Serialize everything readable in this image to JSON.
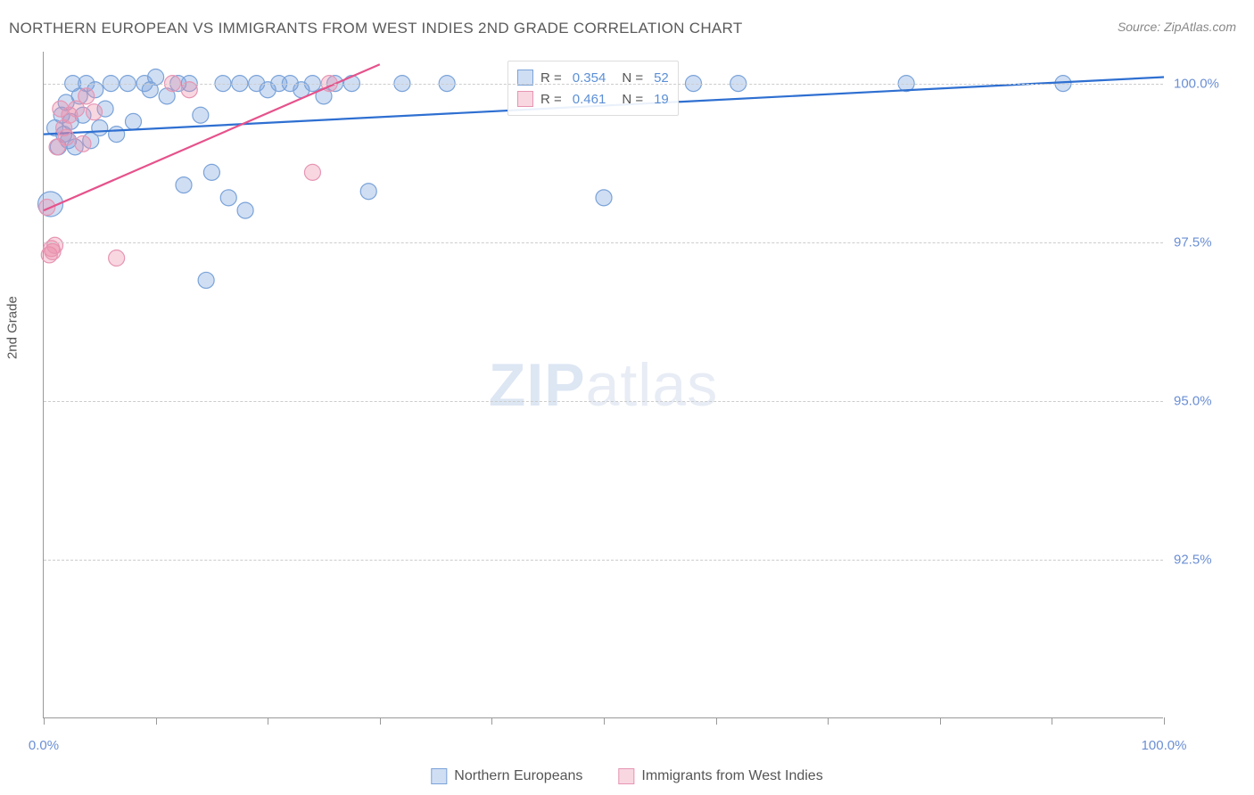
{
  "title": "NORTHERN EUROPEAN VS IMMIGRANTS FROM WEST INDIES 2ND GRADE CORRELATION CHART",
  "source_label": "Source: ZipAtlas.com",
  "watermark_a": "ZIP",
  "watermark_b": "atlas",
  "y_axis_label": "2nd Grade",
  "chart": {
    "type": "scatter",
    "xlim": [
      0,
      100
    ],
    "ylim": [
      90.0,
      100.5
    ],
    "x_ticks": [
      0,
      10,
      20,
      30,
      40,
      50,
      60,
      70,
      80,
      90,
      100
    ],
    "x_tick_labels_shown": {
      "0": "0.0%",
      "100": "100.0%"
    },
    "y_gridlines": [
      92.5,
      95.0,
      97.5,
      100.0
    ],
    "y_tick_labels": {
      "92.5": "92.5%",
      "95.0": "95.0%",
      "97.5": "97.5%",
      "100.0": "100.0%"
    },
    "background_color": "#ffffff",
    "grid_color": "#cccccc",
    "axis_color": "#999999",
    "tick_label_color": "#6b8fd4",
    "series": [
      {
        "name": "Northern Europeans",
        "color_fill": "rgba(120,160,220,0.35)",
        "color_stroke": "#7aa3d9",
        "marker_radius": 9,
        "r_value": "0.354",
        "n_value": "52",
        "trend": {
          "x1": 0,
          "y1": 99.2,
          "x2": 100,
          "y2": 100.1,
          "color": "#2e6fd1",
          "width": 2.2
        },
        "points": [
          {
            "x": 0.6,
            "y": 98.1,
            "r": 14
          },
          {
            "x": 1.0,
            "y": 99.3
          },
          {
            "x": 1.3,
            "y": 99.0
          },
          {
            "x": 1.6,
            "y": 99.5
          },
          {
            "x": 1.8,
            "y": 99.2
          },
          {
            "x": 2.0,
            "y": 99.7
          },
          {
            "x": 2.2,
            "y": 99.1
          },
          {
            "x": 2.4,
            "y": 99.4
          },
          {
            "x": 2.6,
            "y": 100.0
          },
          {
            "x": 2.8,
            "y": 99.0
          },
          {
            "x": 3.2,
            "y": 99.8
          },
          {
            "x": 3.5,
            "y": 99.5
          },
          {
            "x": 3.8,
            "y": 100.0
          },
          {
            "x": 4.2,
            "y": 99.1
          },
          {
            "x": 4.6,
            "y": 99.9
          },
          {
            "x": 5.0,
            "y": 99.3
          },
          {
            "x": 5.5,
            "y": 99.6
          },
          {
            "x": 6.0,
            "y": 100.0
          },
          {
            "x": 6.5,
            "y": 99.2
          },
          {
            "x": 7.5,
            "y": 100.0
          },
          {
            "x": 8.0,
            "y": 99.4
          },
          {
            "x": 9.0,
            "y": 100.0
          },
          {
            "x": 9.5,
            "y": 99.9
          },
          {
            "x": 10.0,
            "y": 100.1
          },
          {
            "x": 11.0,
            "y": 99.8
          },
          {
            "x": 12.0,
            "y": 100.0
          },
          {
            "x": 12.5,
            "y": 98.4
          },
          {
            "x": 13.0,
            "y": 100.0
          },
          {
            "x": 14.0,
            "y": 99.5
          },
          {
            "x": 14.5,
            "y": 96.9
          },
          {
            "x": 15.0,
            "y": 98.6
          },
          {
            "x": 16.0,
            "y": 100.0
          },
          {
            "x": 16.5,
            "y": 98.2
          },
          {
            "x": 17.5,
            "y": 100.0
          },
          {
            "x": 18.0,
            "y": 98.0
          },
          {
            "x": 19.0,
            "y": 100.0
          },
          {
            "x": 20.0,
            "y": 99.9
          },
          {
            "x": 21.0,
            "y": 100.0
          },
          {
            "x": 22.0,
            "y": 100.0
          },
          {
            "x": 23.0,
            "y": 99.9
          },
          {
            "x": 24.0,
            "y": 100.0
          },
          {
            "x": 25.0,
            "y": 99.8
          },
          {
            "x": 26.0,
            "y": 100.0
          },
          {
            "x": 27.5,
            "y": 100.0
          },
          {
            "x": 29.0,
            "y": 98.3
          },
          {
            "x": 32.0,
            "y": 100.0
          },
          {
            "x": 36.0,
            "y": 100.0
          },
          {
            "x": 50.0,
            "y": 98.2
          },
          {
            "x": 58.0,
            "y": 100.0
          },
          {
            "x": 62.0,
            "y": 100.0
          },
          {
            "x": 77.0,
            "y": 100.0
          },
          {
            "x": 91.0,
            "y": 100.0
          }
        ]
      },
      {
        "name": "Immigrants from West Indies",
        "color_fill": "rgba(235,140,170,0.35)",
        "color_stroke": "#e695b3",
        "marker_radius": 9,
        "r_value": "0.461",
        "n_value": "19",
        "trend": {
          "x1": 0,
          "y1": 98.0,
          "x2": 30,
          "y2": 100.3,
          "color": "#e6528b",
          "width": 2.2
        },
        "points": [
          {
            "x": 0.3,
            "y": 98.05
          },
          {
            "x": 0.5,
            "y": 97.3
          },
          {
            "x": 0.7,
            "y": 97.4
          },
          {
            "x": 0.8,
            "y": 97.35
          },
          {
            "x": 1.0,
            "y": 97.45
          },
          {
            "x": 1.2,
            "y": 99.0
          },
          {
            "x": 1.5,
            "y": 99.6
          },
          {
            "x": 1.8,
            "y": 99.3
          },
          {
            "x": 2.0,
            "y": 99.15
          },
          {
            "x": 2.3,
            "y": 99.5
          },
          {
            "x": 2.9,
            "y": 99.6
          },
          {
            "x": 3.5,
            "y": 99.05
          },
          {
            "x": 3.8,
            "y": 99.8
          },
          {
            "x": 4.5,
            "y": 99.55
          },
          {
            "x": 6.5,
            "y": 97.25
          },
          {
            "x": 11.5,
            "y": 100.0
          },
          {
            "x": 13.0,
            "y": 99.9
          },
          {
            "x": 24.0,
            "y": 98.6
          },
          {
            "x": 25.5,
            "y": 100.0
          }
        ]
      }
    ]
  },
  "legend": {
    "r_label": "R =",
    "n_label": "N ="
  },
  "bottom_legend": {
    "series_a": "Northern Europeans",
    "series_b": "Immigrants from West Indies"
  }
}
